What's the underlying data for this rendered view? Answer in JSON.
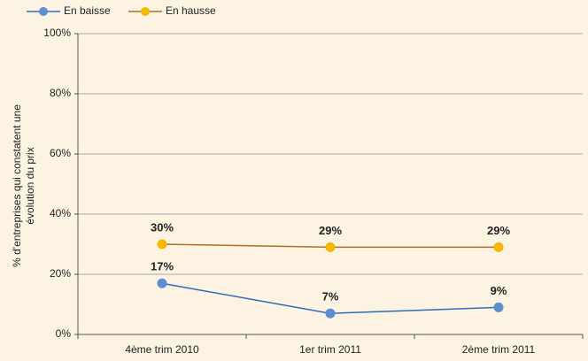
{
  "chart_data": {
    "type": "line",
    "ylabel": [
      "% d'entreprises qui constatent une",
      "évolution du prix"
    ],
    "categories": [
      "4ème trim 2010",
      "1er trim 2011",
      "2ème trim 2011"
    ],
    "series": [
      {
        "name": "En baisse",
        "color": "#5b8fd0",
        "line_color": "#2f6cb8",
        "values": [
          17,
          7,
          9
        ],
        "value_labels": [
          "17%",
          "7%",
          "9%"
        ]
      },
      {
        "name": "En hausse",
        "color": "#f5b800",
        "line_color": "#a8702a",
        "values": [
          30,
          29,
          29
        ],
        "value_labels": [
          "30%",
          "29%",
          "29%"
        ]
      }
    ],
    "ylim": [
      0,
      100
    ],
    "yticks": [
      {
        "value": 0,
        "label": "0%"
      },
      {
        "value": 20,
        "label": "20%"
      },
      {
        "value": 40,
        "label": "40%"
      },
      {
        "value": 60,
        "label": "60%"
      },
      {
        "value": 80,
        "label": "80%"
      },
      {
        "value": 100,
        "label": "100%"
      }
    ],
    "grid": true
  }
}
